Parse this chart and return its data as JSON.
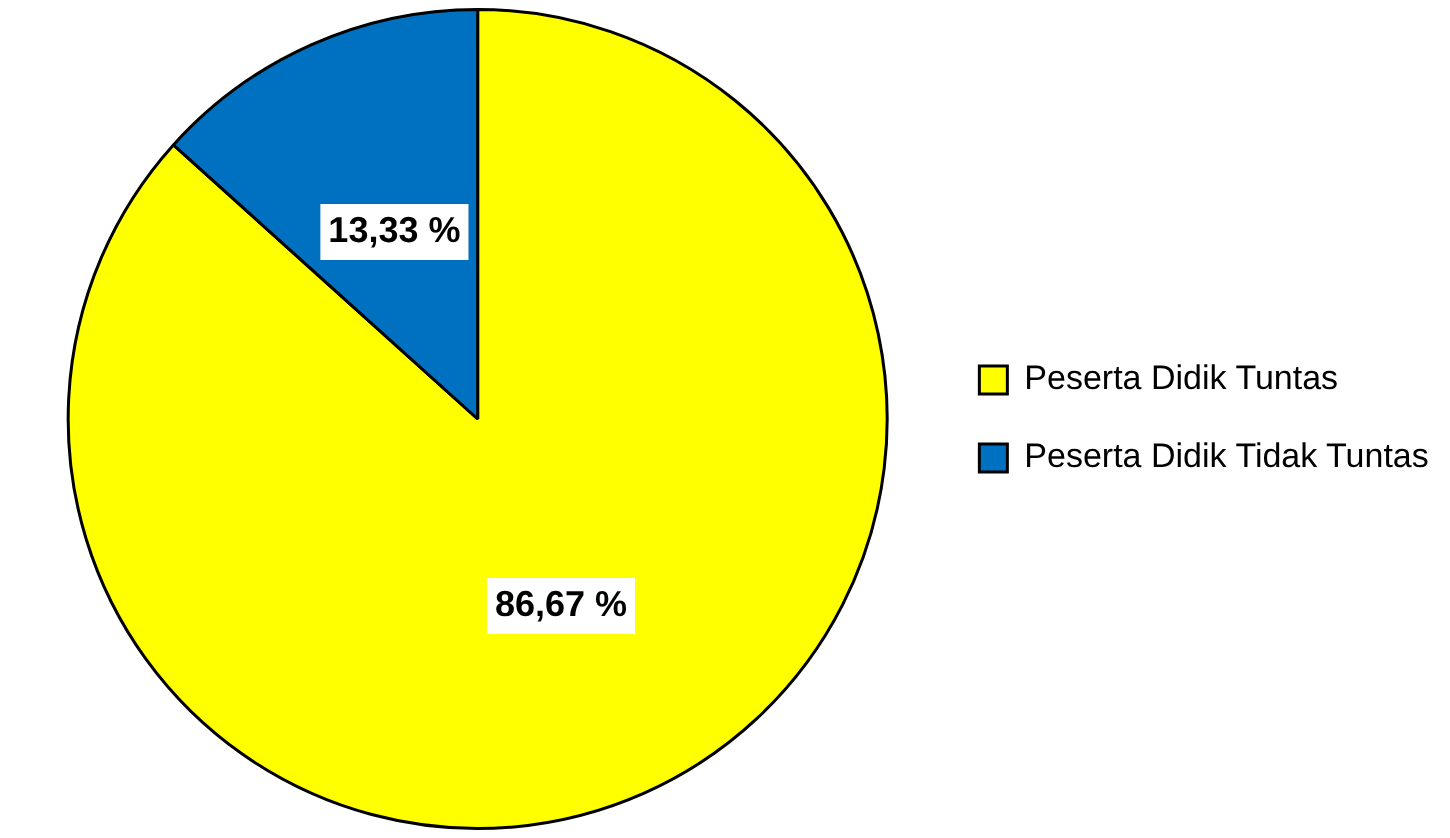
{
  "chart_data": {
    "type": "pie",
    "categories": [
      "Peserta Didik Tuntas",
      "Peserta Didik Tidak Tuntas"
    ],
    "values": [
      86.67,
      13.33
    ],
    "colors": [
      "#ffff00",
      "#0070c0"
    ],
    "value_labels": [
      "86,67 %",
      "13,33 %"
    ],
    "legend": "right"
  }
}
